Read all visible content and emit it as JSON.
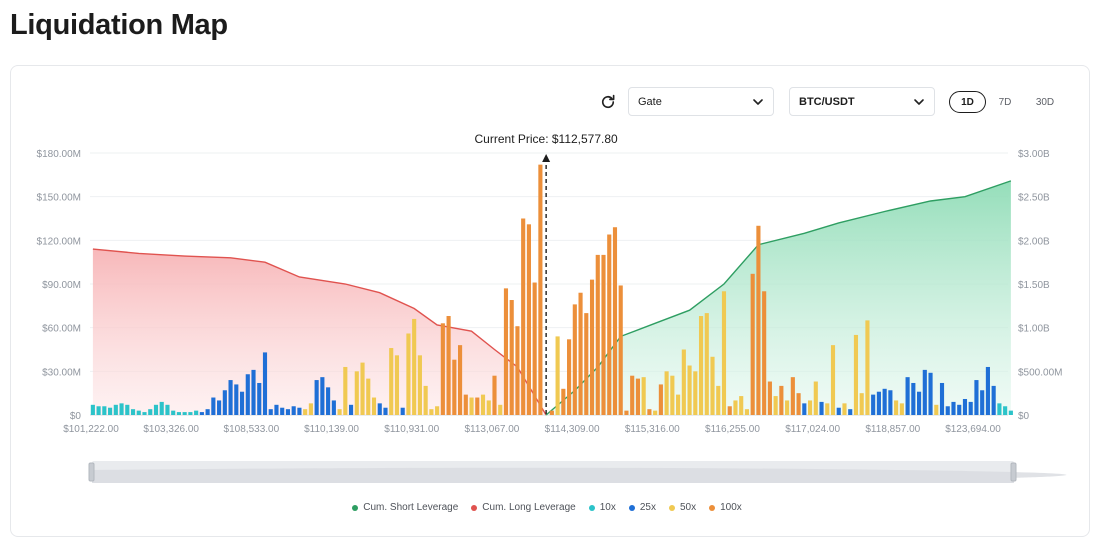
{
  "page": {
    "title": "Liquidation Map"
  },
  "controls": {
    "exchange": "Gate",
    "pair": "BTC/USDT",
    "ranges": [
      "1D",
      "7D",
      "30D"
    ],
    "active_range": "1D"
  },
  "colors": {
    "short": "#2e9e62",
    "long": "#e0534f",
    "10x": "#2cc3c9",
    "25x": "#1f6fd6",
    "50x": "#f0c952",
    "100x": "#ec8f3a"
  },
  "chart_data": {
    "type": "bar",
    "current_price_label": "Current Price: $112,577.80",
    "x_ticks": [
      "$101,222.00",
      "$103,326.00",
      "$108,533.00",
      "$110,139.00",
      "$110,931.00",
      "$113,067.00",
      "$114,309.00",
      "$115,316.00",
      "$116,255.00",
      "$117,024.00",
      "$118,857.00",
      "$123,694.00"
    ],
    "y_left_ticks": [
      "$0",
      "$30.00M",
      "$60.00M",
      "$90.00M",
      "$120.00M",
      "$150.00M",
      "$180.00M"
    ],
    "y_right_ticks": [
      "$0",
      "$500.00M",
      "$1.00B",
      "$1.50B",
      "$2.00B",
      "$2.50B",
      "$3.00B"
    ],
    "y_left_range_millions": [
      0,
      180
    ],
    "y_right_range_billions": [
      0,
      3
    ],
    "bar_category_count": 160,
    "current_price_index": 79,
    "bars": [
      {
        "i": 0,
        "v": 7,
        "lev": "10x"
      },
      {
        "i": 1,
        "v": 6,
        "lev": "10x"
      },
      {
        "i": 2,
        "v": 6,
        "lev": "10x"
      },
      {
        "i": 3,
        "v": 5,
        "lev": "10x"
      },
      {
        "i": 4,
        "v": 7,
        "lev": "10x"
      },
      {
        "i": 5,
        "v": 8,
        "lev": "10x"
      },
      {
        "i": 6,
        "v": 7,
        "lev": "10x"
      },
      {
        "i": 7,
        "v": 4,
        "lev": "10x"
      },
      {
        "i": 8,
        "v": 3,
        "lev": "10x"
      },
      {
        "i": 9,
        "v": 2,
        "lev": "10x"
      },
      {
        "i": 10,
        "v": 4,
        "lev": "10x"
      },
      {
        "i": 11,
        "v": 7,
        "lev": "10x"
      },
      {
        "i": 12,
        "v": 9,
        "lev": "10x"
      },
      {
        "i": 13,
        "v": 7,
        "lev": "10x"
      },
      {
        "i": 14,
        "v": 3,
        "lev": "10x"
      },
      {
        "i": 15,
        "v": 2,
        "lev": "10x"
      },
      {
        "i": 16,
        "v": 2,
        "lev": "10x"
      },
      {
        "i": 17,
        "v": 2,
        "lev": "10x"
      },
      {
        "i": 18,
        "v": 3,
        "lev": "10x"
      },
      {
        "i": 19,
        "v": 2,
        "lev": "25x"
      },
      {
        "i": 20,
        "v": 4,
        "lev": "25x"
      },
      {
        "i": 21,
        "v": 12,
        "lev": "25x"
      },
      {
        "i": 22,
        "v": 10,
        "lev": "25x"
      },
      {
        "i": 23,
        "v": 17,
        "lev": "25x"
      },
      {
        "i": 24,
        "v": 24,
        "lev": "25x"
      },
      {
        "i": 25,
        "v": 21,
        "lev": "25x"
      },
      {
        "i": 26,
        "v": 16,
        "lev": "25x"
      },
      {
        "i": 27,
        "v": 28,
        "lev": "25x"
      },
      {
        "i": 28,
        "v": 31,
        "lev": "25x"
      },
      {
        "i": 29,
        "v": 22,
        "lev": "25x"
      },
      {
        "i": 30,
        "v": 43,
        "lev": "25x"
      },
      {
        "i": 31,
        "v": 4,
        "lev": "25x"
      },
      {
        "i": 32,
        "v": 7,
        "lev": "25x"
      },
      {
        "i": 33,
        "v": 5,
        "lev": "25x"
      },
      {
        "i": 34,
        "v": 4,
        "lev": "25x"
      },
      {
        "i": 35,
        "v": 6,
        "lev": "25x"
      },
      {
        "i": 36,
        "v": 5,
        "lev": "25x"
      },
      {
        "i": 37,
        "v": 4,
        "lev": "50x"
      },
      {
        "i": 38,
        "v": 8,
        "lev": "50x"
      },
      {
        "i": 39,
        "v": 24,
        "lev": "25x"
      },
      {
        "i": 40,
        "v": 26,
        "lev": "25x"
      },
      {
        "i": 41,
        "v": 19,
        "lev": "25x"
      },
      {
        "i": 42,
        "v": 10,
        "lev": "25x"
      },
      {
        "i": 43,
        "v": 4,
        "lev": "50x"
      },
      {
        "i": 44,
        "v": 33,
        "lev": "50x"
      },
      {
        "i": 45,
        "v": 7,
        "lev": "25x"
      },
      {
        "i": 46,
        "v": 30,
        "lev": "50x"
      },
      {
        "i": 47,
        "v": 36,
        "lev": "50x"
      },
      {
        "i": 48,
        "v": 25,
        "lev": "50x"
      },
      {
        "i": 49,
        "v": 12,
        "lev": "50x"
      },
      {
        "i": 50,
        "v": 8,
        "lev": "25x"
      },
      {
        "i": 51,
        "v": 5,
        "lev": "25x"
      },
      {
        "i": 52,
        "v": 46,
        "lev": "50x"
      },
      {
        "i": 53,
        "v": 41,
        "lev": "50x"
      },
      {
        "i": 54,
        "v": 5,
        "lev": "25x"
      },
      {
        "i": 55,
        "v": 56,
        "lev": "50x"
      },
      {
        "i": 56,
        "v": 66,
        "lev": "50x"
      },
      {
        "i": 57,
        "v": 41,
        "lev": "50x"
      },
      {
        "i": 58,
        "v": 20,
        "lev": "50x"
      },
      {
        "i": 59,
        "v": 4,
        "lev": "50x"
      },
      {
        "i": 60,
        "v": 6,
        "lev": "50x"
      },
      {
        "i": 61,
        "v": 63,
        "lev": "100x"
      },
      {
        "i": 62,
        "v": 68,
        "lev": "100x"
      },
      {
        "i": 63,
        "v": 38,
        "lev": "100x"
      },
      {
        "i": 64,
        "v": 48,
        "lev": "100x"
      },
      {
        "i": 65,
        "v": 14,
        "lev": "100x"
      },
      {
        "i": 66,
        "v": 12,
        "lev": "50x"
      },
      {
        "i": 67,
        "v": 12,
        "lev": "100x"
      },
      {
        "i": 68,
        "v": 14,
        "lev": "50x"
      },
      {
        "i": 69,
        "v": 10,
        "lev": "50x"
      },
      {
        "i": 70,
        "v": 27,
        "lev": "100x"
      },
      {
        "i": 71,
        "v": 7,
        "lev": "50x"
      },
      {
        "i": 72,
        "v": 87,
        "lev": "100x"
      },
      {
        "i": 73,
        "v": 79,
        "lev": "100x"
      },
      {
        "i": 74,
        "v": 61,
        "lev": "100x"
      },
      {
        "i": 75,
        "v": 135,
        "lev": "100x"
      },
      {
        "i": 76,
        "v": 131,
        "lev": "100x"
      },
      {
        "i": 77,
        "v": 91,
        "lev": "100x"
      },
      {
        "i": 78,
        "v": 172,
        "lev": "100x"
      },
      {
        "i": 80,
        "v": 3,
        "lev": "100x"
      },
      {
        "i": 81,
        "v": 54,
        "lev": "50x"
      },
      {
        "i": 82,
        "v": 18,
        "lev": "100x"
      },
      {
        "i": 83,
        "v": 52,
        "lev": "100x"
      },
      {
        "i": 84,
        "v": 76,
        "lev": "100x"
      },
      {
        "i": 85,
        "v": 84,
        "lev": "100x"
      },
      {
        "i": 86,
        "v": 70,
        "lev": "100x"
      },
      {
        "i": 87,
        "v": 93,
        "lev": "100x"
      },
      {
        "i": 88,
        "v": 110,
        "lev": "100x"
      },
      {
        "i": 89,
        "v": 110,
        "lev": "100x"
      },
      {
        "i": 90,
        "v": 124,
        "lev": "100x"
      },
      {
        "i": 91,
        "v": 129,
        "lev": "100x"
      },
      {
        "i": 92,
        "v": 89,
        "lev": "100x"
      },
      {
        "i": 93,
        "v": 3,
        "lev": "100x"
      },
      {
        "i": 94,
        "v": 27,
        "lev": "100x"
      },
      {
        "i": 95,
        "v": 25,
        "lev": "100x"
      },
      {
        "i": 96,
        "v": 26,
        "lev": "50x"
      },
      {
        "i": 97,
        "v": 4,
        "lev": "100x"
      },
      {
        "i": 98,
        "v": 3,
        "lev": "50x"
      },
      {
        "i": 99,
        "v": 21,
        "lev": "100x"
      },
      {
        "i": 100,
        "v": 30,
        "lev": "50x"
      },
      {
        "i": 101,
        "v": 27,
        "lev": "50x"
      },
      {
        "i": 102,
        "v": 14,
        "lev": "50x"
      },
      {
        "i": 103,
        "v": 45,
        "lev": "50x"
      },
      {
        "i": 104,
        "v": 34,
        "lev": "50x"
      },
      {
        "i": 105,
        "v": 30,
        "lev": "50x"
      },
      {
        "i": 106,
        "v": 68,
        "lev": "50x"
      },
      {
        "i": 107,
        "v": 70,
        "lev": "50x"
      },
      {
        "i": 108,
        "v": 40,
        "lev": "50x"
      },
      {
        "i": 109,
        "v": 20,
        "lev": "50x"
      },
      {
        "i": 110,
        "v": 85,
        "lev": "50x"
      },
      {
        "i": 111,
        "v": 6,
        "lev": "100x"
      },
      {
        "i": 112,
        "v": 10,
        "lev": "50x"
      },
      {
        "i": 113,
        "v": 13,
        "lev": "50x"
      },
      {
        "i": 114,
        "v": 4,
        "lev": "50x"
      },
      {
        "i": 115,
        "v": 97,
        "lev": "100x"
      },
      {
        "i": 116,
        "v": 130,
        "lev": "100x"
      },
      {
        "i": 117,
        "v": 85,
        "lev": "100x"
      },
      {
        "i": 118,
        "v": 23,
        "lev": "100x"
      },
      {
        "i": 119,
        "v": 13,
        "lev": "50x"
      },
      {
        "i": 120,
        "v": 20,
        "lev": "100x"
      },
      {
        "i": 121,
        "v": 10,
        "lev": "50x"
      },
      {
        "i": 122,
        "v": 26,
        "lev": "100x"
      },
      {
        "i": 123,
        "v": 15,
        "lev": "100x"
      },
      {
        "i": 124,
        "v": 8,
        "lev": "25x"
      },
      {
        "i": 125,
        "v": 10,
        "lev": "50x"
      },
      {
        "i": 126,
        "v": 23,
        "lev": "50x"
      },
      {
        "i": 127,
        "v": 9,
        "lev": "25x"
      },
      {
        "i": 128,
        "v": 8,
        "lev": "50x"
      },
      {
        "i": 129,
        "v": 48,
        "lev": "50x"
      },
      {
        "i": 130,
        "v": 5,
        "lev": "25x"
      },
      {
        "i": 131,
        "v": 8,
        "lev": "50x"
      },
      {
        "i": 132,
        "v": 4,
        "lev": "25x"
      },
      {
        "i": 133,
        "v": 55,
        "lev": "50x"
      },
      {
        "i": 134,
        "v": 15,
        "lev": "50x"
      },
      {
        "i": 135,
        "v": 65,
        "lev": "50x"
      },
      {
        "i": 136,
        "v": 14,
        "lev": "25x"
      },
      {
        "i": 137,
        "v": 16,
        "lev": "25x"
      },
      {
        "i": 138,
        "v": 18,
        "lev": "25x"
      },
      {
        "i": 139,
        "v": 17,
        "lev": "25x"
      },
      {
        "i": 140,
        "v": 10,
        "lev": "50x"
      },
      {
        "i": 141,
        "v": 8,
        "lev": "50x"
      },
      {
        "i": 142,
        "v": 26,
        "lev": "25x"
      },
      {
        "i": 143,
        "v": 22,
        "lev": "25x"
      },
      {
        "i": 144,
        "v": 16,
        "lev": "25x"
      },
      {
        "i": 145,
        "v": 31,
        "lev": "25x"
      },
      {
        "i": 146,
        "v": 29,
        "lev": "25x"
      },
      {
        "i": 147,
        "v": 7,
        "lev": "50x"
      },
      {
        "i": 148,
        "v": 22,
        "lev": "25x"
      },
      {
        "i": 149,
        "v": 6,
        "lev": "25x"
      },
      {
        "i": 150,
        "v": 9,
        "lev": "25x"
      },
      {
        "i": 151,
        "v": 7,
        "lev": "25x"
      },
      {
        "i": 152,
        "v": 11,
        "lev": "25x"
      },
      {
        "i": 153,
        "v": 9,
        "lev": "25x"
      },
      {
        "i": 154,
        "v": 24,
        "lev": "25x"
      },
      {
        "i": 155,
        "v": 17,
        "lev": "25x"
      },
      {
        "i": 156,
        "v": 33,
        "lev": "25x"
      },
      {
        "i": 157,
        "v": 20,
        "lev": "25x"
      },
      {
        "i": 158,
        "v": 8,
        "lev": "10x"
      },
      {
        "i": 159,
        "v": 6,
        "lev": "10x"
      },
      {
        "i": 160,
        "v": 3,
        "lev": "10x"
      }
    ],
    "cum_long_billions": [
      [
        0,
        1.9
      ],
      [
        8,
        1.85
      ],
      [
        16,
        1.82
      ],
      [
        24,
        1.8
      ],
      [
        30,
        1.75
      ],
      [
        36,
        1.58
      ],
      [
        44,
        1.5
      ],
      [
        50,
        1.4
      ],
      [
        56,
        1.22
      ],
      [
        60,
        1.03
      ],
      [
        66,
        0.96
      ],
      [
        70,
        0.75
      ],
      [
        74,
        0.55
      ],
      [
        79,
        0
      ]
    ],
    "cum_short_billions": [
      [
        79,
        0
      ],
      [
        84,
        0.28
      ],
      [
        88,
        0.55
      ],
      [
        92,
        0.9
      ],
      [
        98,
        1.05
      ],
      [
        104,
        1.2
      ],
      [
        110,
        1.5
      ],
      [
        116,
        1.95
      ],
      [
        124,
        2.08
      ],
      [
        130,
        2.2
      ],
      [
        138,
        2.33
      ],
      [
        146,
        2.45
      ],
      [
        152,
        2.5
      ],
      [
        160,
        2.68
      ]
    ]
  },
  "legend": [
    {
      "key": "short",
      "label": "Cum. Short Leverage"
    },
    {
      "key": "long",
      "label": "Cum. Long Leverage"
    },
    {
      "key": "10x",
      "label": "10x"
    },
    {
      "key": "25x",
      "label": "25x"
    },
    {
      "key": "50x",
      "label": "50x"
    },
    {
      "key": "100x",
      "label": "100x"
    }
  ]
}
